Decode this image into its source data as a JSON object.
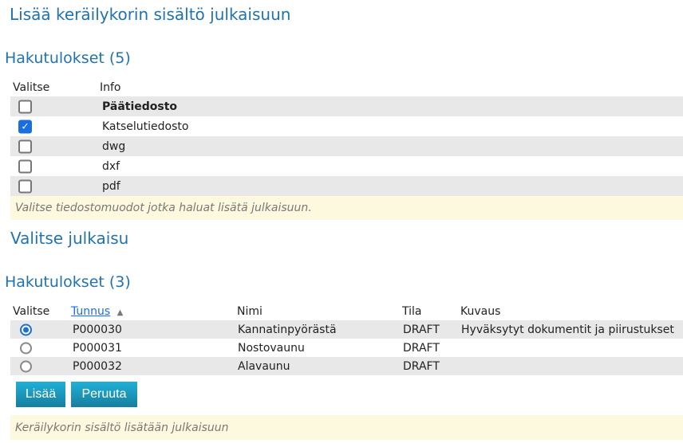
{
  "page_title": "Lisää keräilykorin sisältö julkaisuun",
  "formats": {
    "results_title": "Hakutulokset (5)",
    "columns": {
      "select": "Valitse",
      "info": "Info"
    },
    "rows": [
      {
        "label": "Päätiedosto",
        "checked": false,
        "bold": true
      },
      {
        "label": "Katselutiedosto",
        "checked": true
      },
      {
        "label": "dwg",
        "checked": false
      },
      {
        "label": "dxf",
        "checked": false
      },
      {
        "label": "pdf",
        "checked": false
      }
    ],
    "note": "Valitse tiedostomuodot jotka haluat lisätä julkaisuun."
  },
  "publication": {
    "section_title": "Valitse julkaisu",
    "results_title": "Hakutulokset (3)",
    "columns": {
      "select": "Valitse",
      "id": "Tunnus",
      "sort_icon": "chevron-up-icon",
      "name": "Nimi",
      "state": "Tila",
      "description": "Kuvaus"
    },
    "rows": [
      {
        "id": "P000030",
        "name": "Kannatinpyörästä",
        "state": "DRAFT",
        "description": "Hyväksytyt dokumentit ja piirustukset",
        "selected": true
      },
      {
        "id": "P000031",
        "name": "Nostovaunu",
        "state": "DRAFT",
        "description": "",
        "selected": false
      },
      {
        "id": "P000032",
        "name": "Alavaunu",
        "state": "DRAFT",
        "description": "",
        "selected": false
      }
    ],
    "add_label": "Lisää",
    "cancel_label": "Peruuta",
    "note": "Keräilykorin sisältö lisätään julkaisuun"
  }
}
